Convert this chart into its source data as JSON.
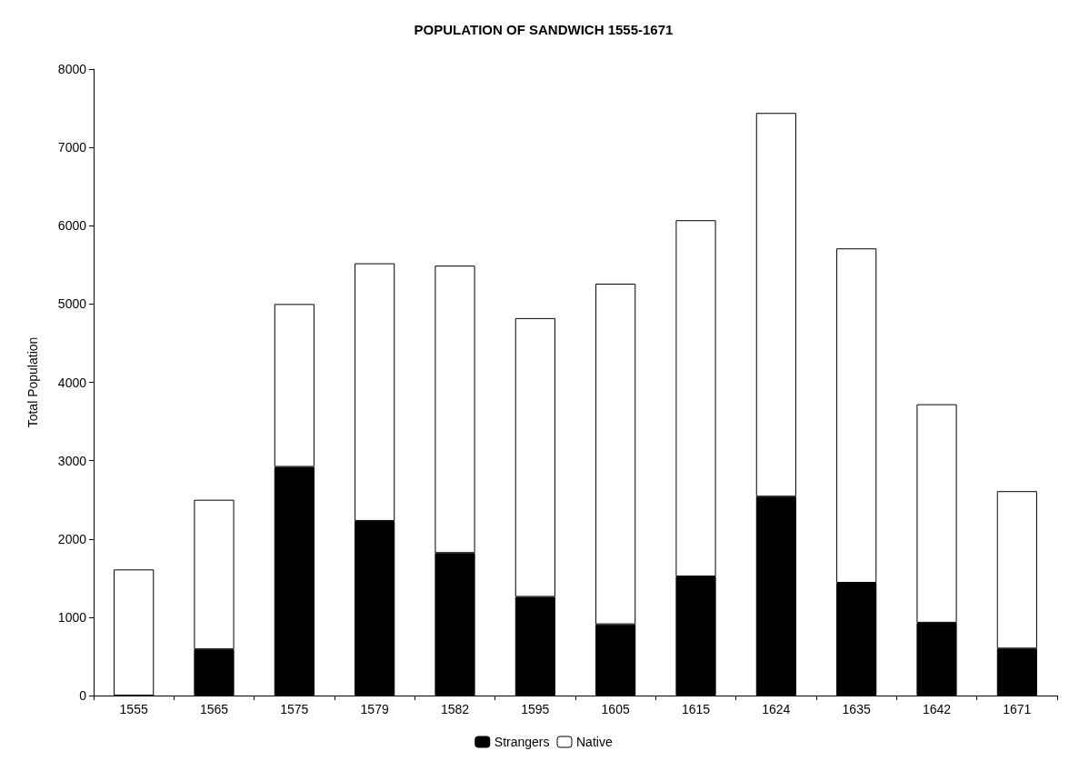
{
  "chart_data": {
    "type": "bar",
    "title": "POPULATION OF SANDWICH 1555-1671",
    "ylabel": "Total Population",
    "categories": [
      "1555",
      "1565",
      "1575",
      "1579",
      "1582",
      "1595",
      "1605",
      "1615",
      "1624",
      "1635",
      "1642",
      "1671"
    ],
    "stacked": true,
    "series": [
      {
        "name": "Strangers",
        "color": "#000000",
        "values": [
          0,
          590,
          2920,
          2230,
          1820,
          1260,
          910,
          1520,
          2540,
          1440,
          930,
          600
        ]
      },
      {
        "name": "Native",
        "color": "#ffffff",
        "values": [
          1610,
          1910,
          2080,
          3290,
          3670,
          3560,
          4350,
          4550,
          4900,
          4270,
          2790,
          2010
        ]
      }
    ],
    "ylim": [
      0,
      8000
    ],
    "yticks": [
      0,
      1000,
      2000,
      3000,
      4000,
      5000,
      6000,
      7000,
      8000
    ],
    "grid": false,
    "legend": "bottom"
  }
}
